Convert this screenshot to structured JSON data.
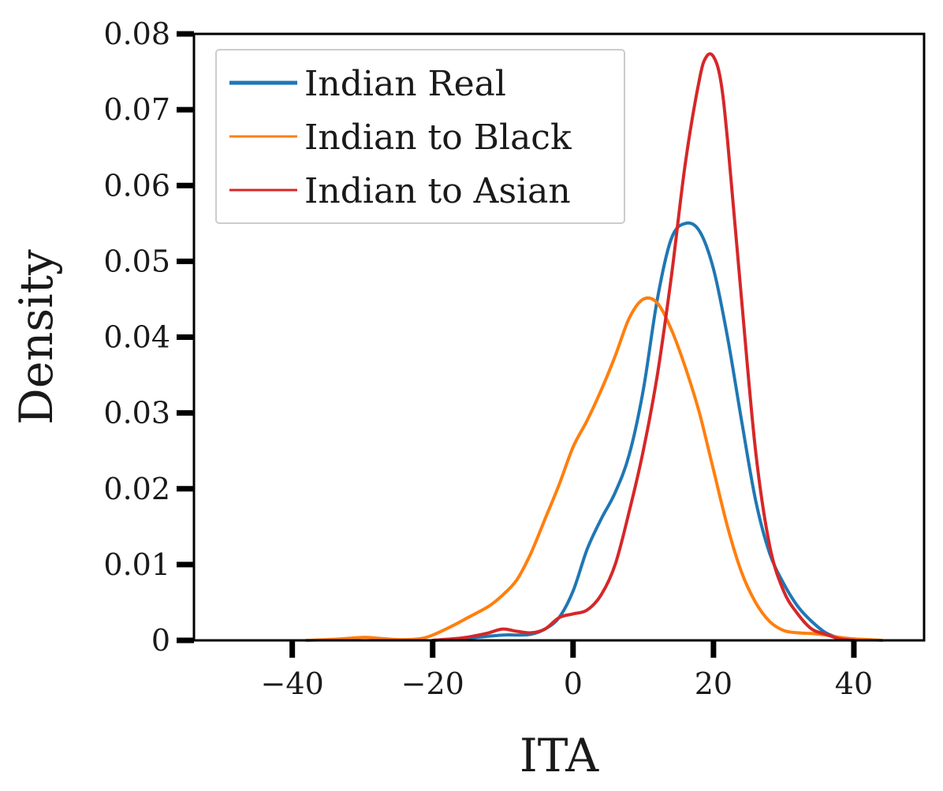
{
  "chart_data": {
    "type": "line",
    "title": "",
    "xlabel": "ITA",
    "ylabel": "Density",
    "xlim": [
      -54,
      50
    ],
    "ylim": [
      0,
      0.08
    ],
    "xticks": [
      -40,
      -20,
      0,
      20,
      40
    ],
    "xtick_labels": [
      "−40",
      "−20",
      "0",
      "20",
      "40"
    ],
    "yticks": [
      0,
      0.01,
      0.02,
      0.03,
      0.04,
      0.05,
      0.06,
      0.07,
      0.08
    ],
    "ytick_labels": [
      "0",
      "0.01",
      "0.02",
      "0.03",
      "0.04",
      "0.05",
      "0.06",
      "0.07",
      "0.08"
    ],
    "grid": false,
    "legend_position": "top-left",
    "series": [
      {
        "name": "Indian Real",
        "color": "#1f77b4",
        "x": [
          -20,
          -15,
          -10,
          -8,
          -6,
          -4,
          -2,
          0,
          2,
          4,
          6,
          8,
          10,
          12,
          14,
          16,
          18,
          20,
          22,
          24,
          26,
          28,
          30,
          32,
          34,
          36,
          38,
          40
        ],
        "y": [
          0.0,
          0.0003,
          0.0007,
          0.0007,
          0.0008,
          0.0015,
          0.003,
          0.0065,
          0.012,
          0.016,
          0.0195,
          0.0245,
          0.033,
          0.045,
          0.053,
          0.055,
          0.054,
          0.049,
          0.04,
          0.029,
          0.0185,
          0.0115,
          0.0075,
          0.0045,
          0.0025,
          0.001,
          0.0003,
          0.0
        ]
      },
      {
        "name": "Indian to Black",
        "color": "#ff7f0e",
        "x": [
          -38,
          -35,
          -33,
          -30,
          -28,
          -25,
          -22,
          -20,
          -17,
          -15,
          -12,
          -10,
          -8,
          -6,
          -4,
          -2,
          0,
          2,
          4,
          6,
          8,
          10,
          12,
          14,
          16,
          18,
          20,
          22,
          24,
          26,
          28,
          30,
          32,
          34,
          36,
          38,
          40,
          42,
          44
        ],
        "y": [
          0.0,
          0.0001,
          0.0002,
          0.0004,
          0.0003,
          0.0001,
          0.0002,
          0.0007,
          0.002,
          0.003,
          0.0045,
          0.006,
          0.008,
          0.0115,
          0.016,
          0.0205,
          0.0255,
          0.029,
          0.033,
          0.0375,
          0.0425,
          0.045,
          0.0445,
          0.041,
          0.036,
          0.03,
          0.0225,
          0.015,
          0.009,
          0.005,
          0.0025,
          0.0013,
          0.001,
          0.0009,
          0.0007,
          0.0004,
          0.0002,
          0.0001,
          0.0
        ]
      },
      {
        "name": "Indian to Asian",
        "color": "#d62728",
        "x": [
          -20,
          -16,
          -14,
          -12,
          -10,
          -8,
          -6,
          -4,
          -2,
          0,
          2,
          4,
          6,
          8,
          10,
          12,
          14,
          16,
          18,
          19,
          20,
          21,
          22,
          24,
          26,
          28,
          30,
          32,
          34,
          36,
          38,
          40
        ],
        "y": [
          0.0,
          0.0003,
          0.0006,
          0.001,
          0.0015,
          0.0012,
          0.001,
          0.0015,
          0.003,
          0.0035,
          0.004,
          0.006,
          0.01,
          0.017,
          0.025,
          0.035,
          0.048,
          0.063,
          0.074,
          0.077,
          0.077,
          0.074,
          0.066,
          0.045,
          0.025,
          0.0125,
          0.0065,
          0.0035,
          0.0015,
          0.0008,
          0.0002,
          0.0
        ]
      }
    ]
  }
}
